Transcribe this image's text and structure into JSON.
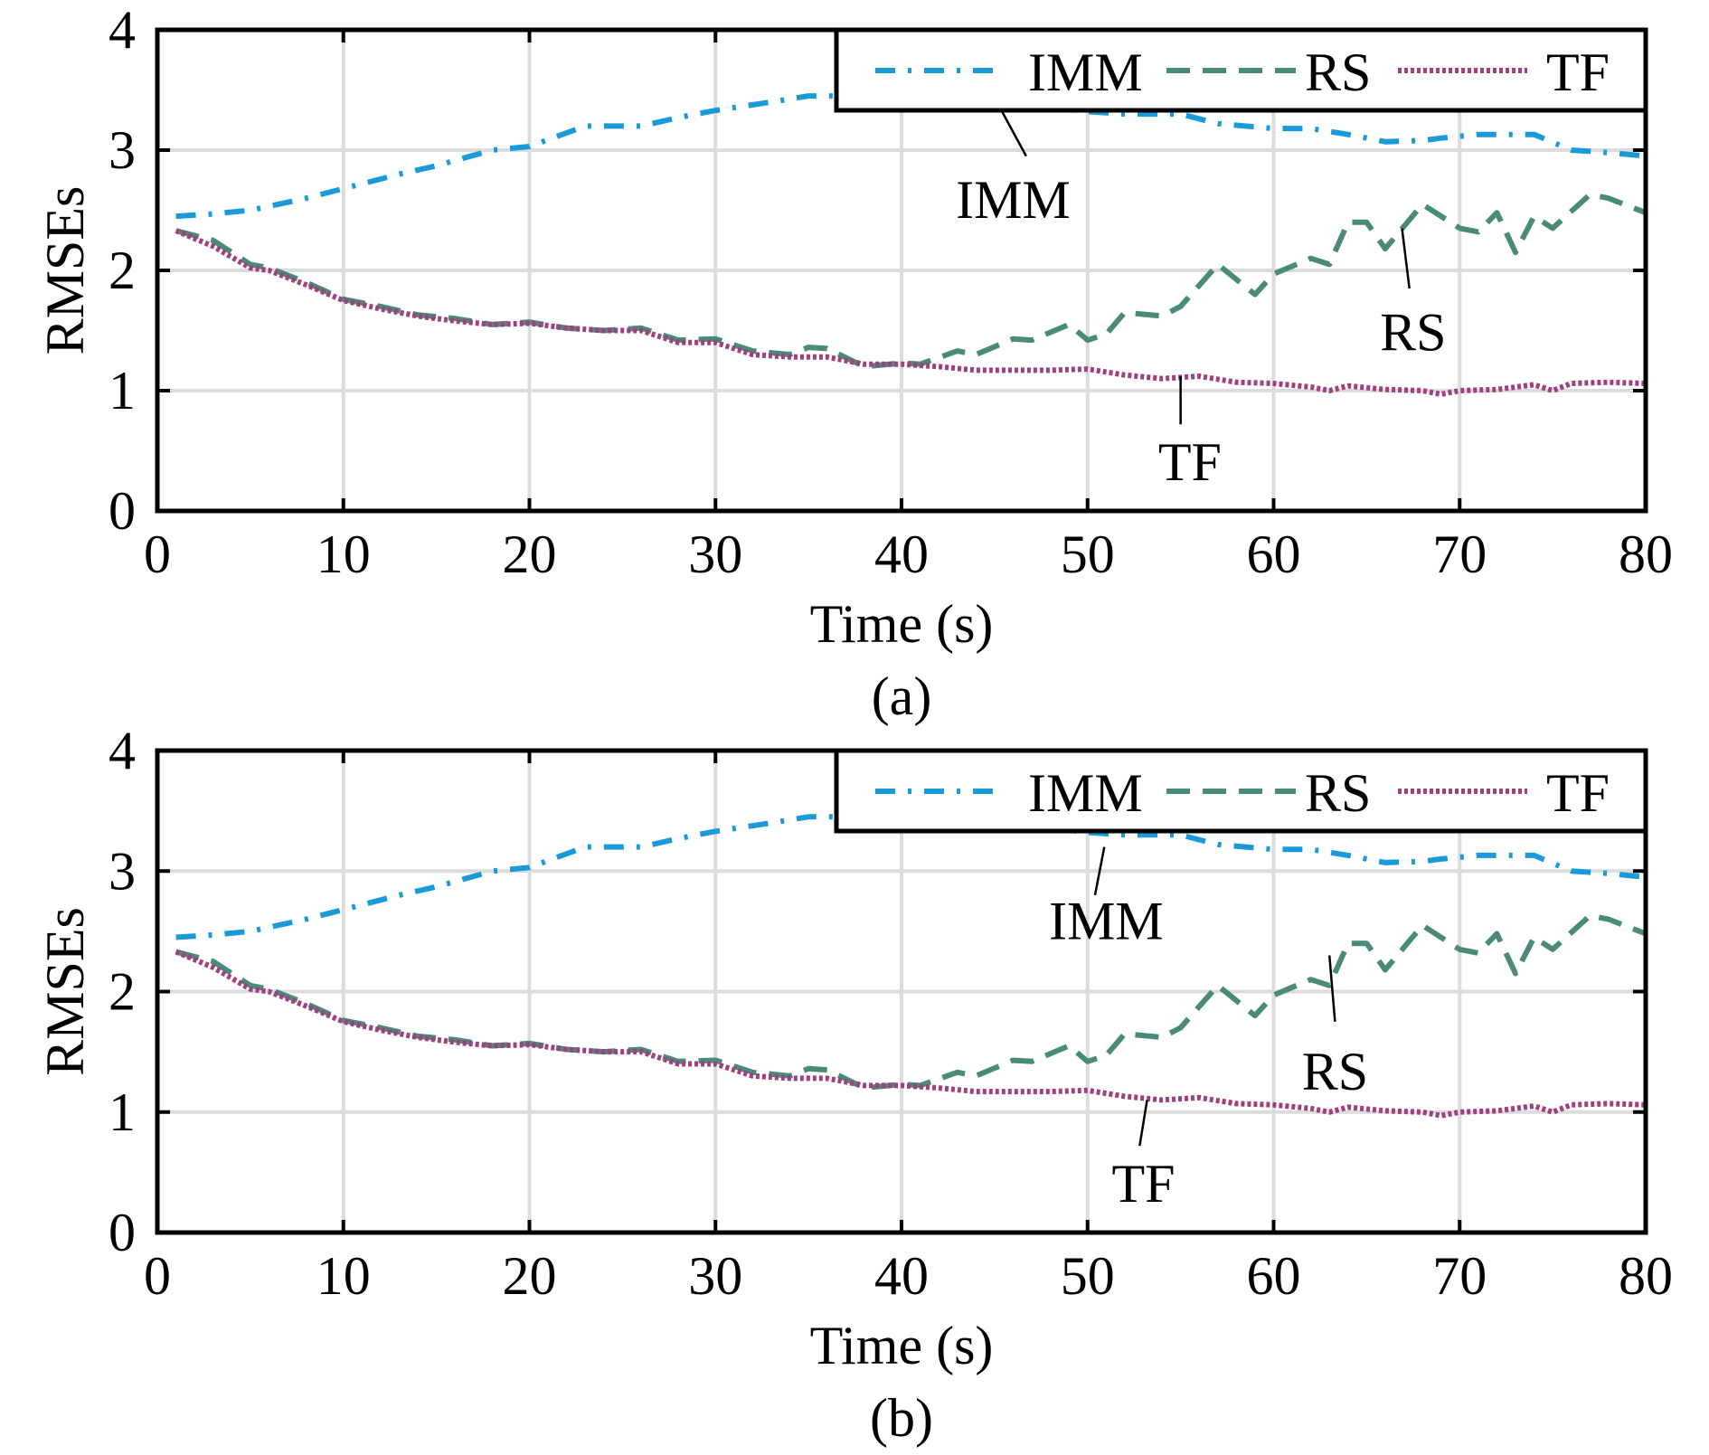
{
  "chart_data": [
    {
      "type": "line",
      "panel_label": "(a)",
      "xlabel": "Time (s)",
      "ylabel": "RMSEs",
      "xlim": [
        0,
        80
      ],
      "ylim": [
        0,
        4
      ],
      "xticks": [
        "0",
        "10",
        "20",
        "30",
        "40",
        "50",
        "60",
        "70",
        "80"
      ],
      "yticks": [
        "0",
        "1",
        "2",
        "3",
        "4"
      ],
      "grid": true,
      "legend": {
        "placement": "top-right",
        "entries": [
          "IMM",
          "RS",
          "TF"
        ]
      },
      "series": [
        {
          "name": "IMM",
          "color": "#1a9ad9",
          "style": "dash-dot",
          "x": [
            1,
            3,
            5,
            8,
            10,
            13,
            15,
            18,
            20,
            23,
            26,
            28,
            30,
            33,
            35,
            38,
            41,
            44,
            47,
            50,
            52,
            55,
            57,
            60,
            62,
            64,
            66,
            68,
            69,
            71,
            73,
            74,
            76,
            78,
            80
          ],
          "y": [
            2.45,
            2.47,
            2.5,
            2.6,
            2.68,
            2.8,
            2.87,
            3.0,
            3.03,
            3.2,
            3.2,
            3.27,
            3.33,
            3.4,
            3.45,
            3.45,
            3.42,
            3.4,
            3.38,
            3.32,
            3.3,
            3.3,
            3.22,
            3.18,
            3.18,
            3.13,
            3.07,
            3.08,
            3.1,
            3.13,
            3.13,
            3.13,
            3.0,
            2.98,
            2.95
          ]
        },
        {
          "name": "RS",
          "color": "#4a8a78",
          "style": "dashed",
          "x": [
            1,
            3,
            5,
            6,
            8,
            10,
            12,
            14,
            16,
            18,
            20,
            22,
            24,
            26,
            28,
            30,
            32,
            34,
            35,
            36,
            38,
            40,
            41,
            43,
            44,
            46,
            47,
            49,
            50,
            51,
            52,
            54,
            55,
            57,
            59,
            60,
            62,
            63,
            64,
            65,
            66,
            68,
            70,
            71,
            72,
            73,
            74,
            75,
            77,
            78,
            80
          ],
          "y": [
            2.33,
            2.25,
            2.05,
            2.02,
            1.9,
            1.76,
            1.7,
            1.63,
            1.6,
            1.55,
            1.57,
            1.52,
            1.5,
            1.52,
            1.42,
            1.43,
            1.33,
            1.3,
            1.36,
            1.35,
            1.2,
            1.23,
            1.22,
            1.33,
            1.3,
            1.43,
            1.42,
            1.55,
            1.42,
            1.47,
            1.65,
            1.62,
            1.7,
            2.05,
            1.8,
            1.97,
            2.1,
            2.05,
            2.4,
            2.4,
            2.18,
            2.55,
            2.35,
            2.32,
            2.48,
            2.15,
            2.45,
            2.35,
            2.63,
            2.6,
            2.48
          ]
        },
        {
          "name": "TF",
          "color": "#a0407e",
          "style": "dotted",
          "x": [
            1,
            3,
            5,
            6,
            8,
            10,
            12,
            14,
            16,
            18,
            20,
            22,
            24,
            26,
            28,
            30,
            32,
            34,
            36,
            38,
            40,
            42,
            44,
            46,
            48,
            50,
            52,
            54,
            56,
            58,
            60,
            62,
            63,
            64,
            66,
            68,
            69,
            70,
            72,
            74,
            75,
            76,
            78,
            80
          ],
          "y": [
            2.33,
            2.2,
            2.02,
            2.0,
            1.88,
            1.75,
            1.68,
            1.62,
            1.58,
            1.55,
            1.56,
            1.52,
            1.5,
            1.5,
            1.4,
            1.4,
            1.3,
            1.28,
            1.28,
            1.22,
            1.22,
            1.2,
            1.17,
            1.17,
            1.17,
            1.18,
            1.13,
            1.1,
            1.12,
            1.07,
            1.06,
            1.03,
            1.0,
            1.04,
            1.01,
            1.0,
            0.97,
            1.0,
            1.01,
            1.05,
            1.0,
            1.06,
            1.07,
            1.06
          ]
        }
      ],
      "annotations": [
        {
          "text": "IMM",
          "from": [
            45.3,
            3.35
          ],
          "to": [
            46.7,
            2.95
          ],
          "label_at": [
            46,
            2.6
          ]
        },
        {
          "text": "RS",
          "from": [
            66.9,
            2.35
          ],
          "to": [
            67.3,
            1.85
          ],
          "label_at": [
            67.5,
            1.5
          ]
        },
        {
          "text": "TF",
          "from": [
            55,
            1.12
          ],
          "to": [
            55,
            0.72
          ],
          "label_at": [
            55.5,
            0.42
          ]
        }
      ]
    },
    {
      "type": "line",
      "panel_label": "(b)",
      "xlabel": "Time (s)",
      "ylabel": "RMSEs",
      "xlim": [
        0,
        80
      ],
      "ylim": [
        0,
        4
      ],
      "xticks": [
        "0",
        "10",
        "20",
        "30",
        "40",
        "50",
        "60",
        "70",
        "80"
      ],
      "yticks": [
        "0",
        "1",
        "2",
        "3",
        "4"
      ],
      "grid": true,
      "legend": {
        "placement": "top-right",
        "entries": [
          "IMM",
          "RS",
          "TF"
        ]
      },
      "series": [
        {
          "name": "IMM",
          "color": "#1a9ad9",
          "style": "dash-dot",
          "x": [
            1,
            3,
            5,
            8,
            10,
            13,
            15,
            18,
            20,
            23,
            26,
            28,
            30,
            33,
            35,
            38,
            41,
            44,
            47,
            50,
            52,
            55,
            57,
            60,
            62,
            64,
            66,
            68,
            69,
            71,
            73,
            74,
            76,
            78,
            80
          ],
          "y": [
            2.45,
            2.47,
            2.5,
            2.6,
            2.68,
            2.8,
            2.87,
            3.0,
            3.03,
            3.2,
            3.2,
            3.27,
            3.33,
            3.4,
            3.45,
            3.45,
            3.42,
            3.4,
            3.38,
            3.32,
            3.3,
            3.3,
            3.22,
            3.18,
            3.18,
            3.13,
            3.07,
            3.08,
            3.1,
            3.13,
            3.13,
            3.13,
            3.0,
            2.98,
            2.95
          ]
        },
        {
          "name": "RS",
          "color": "#4a8a78",
          "style": "dashed",
          "x": [
            1,
            3,
            5,
            6,
            8,
            10,
            12,
            14,
            16,
            18,
            20,
            22,
            24,
            26,
            28,
            30,
            32,
            34,
            35,
            36,
            38,
            40,
            41,
            43,
            44,
            46,
            47,
            49,
            50,
            51,
            52,
            54,
            55,
            57,
            59,
            60,
            62,
            63,
            64,
            65,
            66,
            68,
            70,
            71,
            72,
            73,
            74,
            75,
            77,
            78,
            80
          ],
          "y": [
            2.33,
            2.25,
            2.05,
            2.02,
            1.9,
            1.76,
            1.7,
            1.63,
            1.6,
            1.55,
            1.57,
            1.52,
            1.5,
            1.52,
            1.42,
            1.43,
            1.33,
            1.3,
            1.36,
            1.35,
            1.2,
            1.23,
            1.22,
            1.33,
            1.3,
            1.43,
            1.42,
            1.55,
            1.42,
            1.47,
            1.65,
            1.62,
            1.7,
            2.05,
            1.8,
            1.97,
            2.1,
            2.05,
            2.4,
            2.4,
            2.18,
            2.55,
            2.35,
            2.32,
            2.48,
            2.15,
            2.45,
            2.35,
            2.63,
            2.6,
            2.48
          ]
        },
        {
          "name": "TF",
          "color": "#a0407e",
          "style": "dotted",
          "x": [
            1,
            3,
            5,
            6,
            8,
            10,
            12,
            14,
            16,
            18,
            20,
            22,
            24,
            26,
            28,
            30,
            32,
            34,
            36,
            38,
            40,
            42,
            44,
            46,
            48,
            50,
            52,
            54,
            56,
            58,
            60,
            62,
            63,
            64,
            66,
            68,
            69,
            70,
            72,
            74,
            75,
            76,
            78,
            80
          ],
          "y": [
            2.33,
            2.2,
            2.02,
            2.0,
            1.88,
            1.75,
            1.68,
            1.62,
            1.58,
            1.55,
            1.56,
            1.52,
            1.5,
            1.5,
            1.4,
            1.4,
            1.3,
            1.28,
            1.28,
            1.22,
            1.22,
            1.2,
            1.17,
            1.17,
            1.17,
            1.18,
            1.13,
            1.1,
            1.12,
            1.07,
            1.06,
            1.03,
            1.0,
            1.04,
            1.01,
            1.0,
            0.97,
            1.0,
            1.01,
            1.05,
            1.0,
            1.06,
            1.07,
            1.06
          ]
        }
      ],
      "annotations": [
        {
          "text": "IMM",
          "from": [
            50.9,
            3.2
          ],
          "to": [
            50.4,
            2.8
          ],
          "label_at": [
            51,
            2.6
          ]
        },
        {
          "text": "RS",
          "from": [
            63,
            2.3
          ],
          "to": [
            63.3,
            1.75
          ],
          "label_at": [
            63.3,
            1.35
          ]
        },
        {
          "text": "TF",
          "from": [
            53.2,
            1.1
          ],
          "to": [
            52.8,
            0.72
          ],
          "label_at": [
            53,
            0.42
          ]
        }
      ]
    }
  ]
}
